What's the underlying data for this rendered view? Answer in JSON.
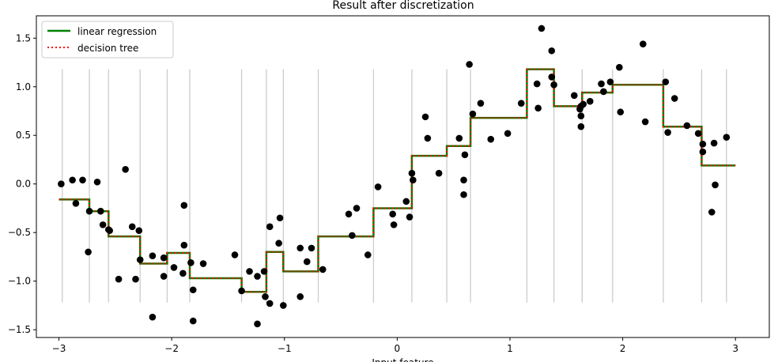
{
  "chart_data": {
    "type": "line",
    "title": "Result after discretization",
    "xlabel": "Input feature",
    "ylabel": "",
    "xlim": [
      -3.2,
      3.3
    ],
    "ylim": [
      -1.58,
      1.73
    ],
    "x_ticks": [
      -3,
      -2,
      -1,
      0,
      1,
      2,
      3
    ],
    "x_tick_labels": [
      "−3",
      "−2",
      "−1",
      "0",
      "1",
      "2",
      "3"
    ],
    "y_ticks": [
      -1.5,
      -1.0,
      -0.5,
      0.0,
      0.5,
      1.0,
      1.5
    ],
    "y_tick_labels": [
      "−1.5",
      "−1.0",
      "−0.5",
      "0.0",
      "0.5",
      "1.0",
      "1.5"
    ],
    "legend": {
      "position": "top-left",
      "entries": [
        "linear regression",
        "decision tree"
      ]
    },
    "bin_edges": [
      -2.97,
      -2.73,
      -2.56,
      -2.28,
      -2.04,
      -1.84,
      -1.38,
      -1.16,
      -1.01,
      -0.7,
      -0.21,
      0.13,
      0.44,
      0.65,
      1.15,
      1.39,
      1.64,
      1.91,
      2.36,
      2.7,
      2.92
    ],
    "edge_line_range": [
      -1.22,
      1.18
    ],
    "steps": [
      {
        "x0": -3.0,
        "x1": -2.73,
        "y": -0.16
      },
      {
        "x0": -2.73,
        "x1": -2.56,
        "y": -0.28
      },
      {
        "x0": -2.56,
        "x1": -2.28,
        "y": -0.54
      },
      {
        "x0": -2.28,
        "x1": -2.04,
        "y": -0.82
      },
      {
        "x0": -2.04,
        "x1": -1.84,
        "y": -0.71
      },
      {
        "x0": -1.84,
        "x1": -1.38,
        "y": -0.97
      },
      {
        "x0": -1.38,
        "x1": -1.16,
        "y": -1.11
      },
      {
        "x0": -1.16,
        "x1": -1.01,
        "y": -0.7
      },
      {
        "x0": -1.01,
        "x1": -0.7,
        "y": -0.9
      },
      {
        "x0": -0.7,
        "x1": -0.21,
        "y": -0.54
      },
      {
        "x0": -0.21,
        "x1": 0.13,
        "y": -0.25
      },
      {
        "x0": 0.13,
        "x1": 0.44,
        "y": 0.29
      },
      {
        "x0": 0.44,
        "x1": 0.65,
        "y": 0.39
      },
      {
        "x0": 0.65,
        "x1": 1.15,
        "y": 0.68
      },
      {
        "x0": 1.15,
        "x1": 1.39,
        "y": 1.18
      },
      {
        "x0": 1.39,
        "x1": 1.64,
        "y": 0.8
      },
      {
        "x0": 1.64,
        "x1": 1.91,
        "y": 0.94
      },
      {
        "x0": 1.91,
        "x1": 2.36,
        "y": 1.02
      },
      {
        "x0": 2.36,
        "x1": 2.7,
        "y": 0.59
      },
      {
        "x0": 2.7,
        "x1": 3.0,
        "y": 0.19
      }
    ],
    "series": [
      {
        "name": "linear regression",
        "color": "#008000",
        "style": "solid"
      },
      {
        "name": "decision tree",
        "color": "#ff0000",
        "style": "dotted"
      }
    ],
    "points_color": "#000000",
    "points": [
      [
        -2.98,
        0.0
      ],
      [
        -2.88,
        0.04
      ],
      [
        -2.85,
        -0.2
      ],
      [
        -2.79,
        0.04
      ],
      [
        -2.74,
        -0.7
      ],
      [
        -2.73,
        -0.28
      ],
      [
        -2.66,
        0.02
      ],
      [
        -2.63,
        -0.28
      ],
      [
        -2.61,
        -0.42
      ],
      [
        -2.56,
        -0.47
      ],
      [
        -2.55,
        -0.48
      ],
      [
        -2.47,
        -0.98
      ],
      [
        -2.41,
        0.15
      ],
      [
        -2.35,
        -0.44
      ],
      [
        -2.32,
        -0.98
      ],
      [
        -2.29,
        -0.48
      ],
      [
        -2.28,
        -0.78
      ],
      [
        -2.17,
        -0.74
      ],
      [
        -2.17,
        -1.37
      ],
      [
        -2.07,
        -0.95
      ],
      [
        -2.07,
        -0.76
      ],
      [
        -1.98,
        -0.86
      ],
      [
        -1.9,
        -0.92
      ],
      [
        -1.89,
        -0.63
      ],
      [
        -1.89,
        -0.22
      ],
      [
        -1.83,
        -0.81
      ],
      [
        -1.81,
        -1.41
      ],
      [
        -1.81,
        -1.09
      ],
      [
        -1.72,
        -0.82
      ],
      [
        -1.44,
        -0.73
      ],
      [
        -1.38,
        -1.1
      ],
      [
        -1.31,
        -0.9
      ],
      [
        -1.24,
        -1.44
      ],
      [
        -1.24,
        -0.95
      ],
      [
        -1.18,
        -0.9
      ],
      [
        -1.17,
        -1.16
      ],
      [
        -1.13,
        -1.23
      ],
      [
        -1.13,
        -0.44
      ],
      [
        -1.05,
        -0.61
      ],
      [
        -1.04,
        -0.35
      ],
      [
        -1.01,
        -1.25
      ],
      [
        -0.86,
        -1.16
      ],
      [
        -0.86,
        -0.66
      ],
      [
        -0.8,
        -0.8
      ],
      [
        -0.76,
        -0.66
      ],
      [
        -0.66,
        -0.88
      ],
      [
        -0.43,
        -0.31
      ],
      [
        -0.4,
        -0.53
      ],
      [
        -0.36,
        -0.25
      ],
      [
        -0.26,
        -0.73
      ],
      [
        -0.17,
        -0.03
      ],
      [
        -0.04,
        -0.31
      ],
      [
        -0.03,
        -0.42
      ],
      [
        0.08,
        -0.18
      ],
      [
        0.11,
        -0.34
      ],
      [
        0.13,
        0.11
      ],
      [
        0.14,
        0.04
      ],
      [
        0.25,
        0.69
      ],
      [
        0.27,
        0.47
      ],
      [
        0.37,
        0.11
      ],
      [
        0.55,
        0.47
      ],
      [
        0.59,
        0.04
      ],
      [
        0.59,
        -0.11
      ],
      [
        0.6,
        0.3
      ],
      [
        0.64,
        1.23
      ],
      [
        0.67,
        0.72
      ],
      [
        0.74,
        0.83
      ],
      [
        0.83,
        0.46
      ],
      [
        0.98,
        0.52
      ],
      [
        1.1,
        0.83
      ],
      [
        1.24,
        1.03
      ],
      [
        1.25,
        0.78
      ],
      [
        1.28,
        1.6
      ],
      [
        1.37,
        1.1
      ],
      [
        1.37,
        1.37
      ],
      [
        1.39,
        1.02
      ],
      [
        1.57,
        0.91
      ],
      [
        1.62,
        0.77
      ],
      [
        1.63,
        0.7
      ],
      [
        1.63,
        0.8
      ],
      [
        1.63,
        0.59
      ],
      [
        1.65,
        0.82
      ],
      [
        1.71,
        0.85
      ],
      [
        1.81,
        1.03
      ],
      [
        1.83,
        0.95
      ],
      [
        1.89,
        1.05
      ],
      [
        1.97,
        1.2
      ],
      [
        1.98,
        0.74
      ],
      [
        2.18,
        1.44
      ],
      [
        2.2,
        0.64
      ],
      [
        2.38,
        1.05
      ],
      [
        2.4,
        0.53
      ],
      [
        2.46,
        0.88
      ],
      [
        2.57,
        0.6
      ],
      [
        2.67,
        0.52
      ],
      [
        2.71,
        0.41
      ],
      [
        2.71,
        0.33
      ],
      [
        2.79,
        -0.29
      ],
      [
        2.81,
        0.42
      ],
      [
        2.82,
        -0.01
      ],
      [
        2.92,
        0.48
      ]
    ]
  }
}
